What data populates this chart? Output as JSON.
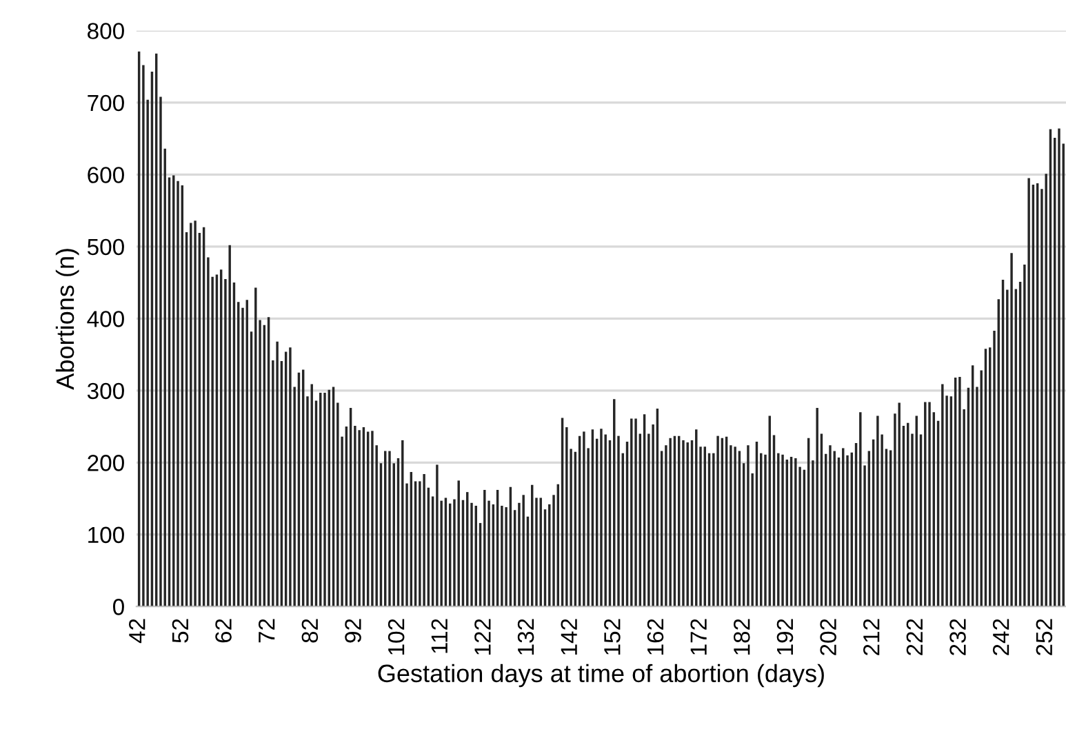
{
  "chart_data": {
    "type": "bar",
    "xlabel": "Gestation days at time of abortion (days)",
    "ylabel": "Abortions (n)",
    "categories": [
      "42",
      null,
      null,
      null,
      null,
      null,
      null,
      null,
      null,
      null,
      "52",
      null,
      null,
      null,
      null,
      null,
      null,
      null,
      null,
      null,
      "62",
      null,
      null,
      null,
      null,
      null,
      null,
      null,
      null,
      null,
      "72",
      null,
      null,
      null,
      null,
      null,
      null,
      null,
      null,
      null,
      "82",
      null,
      null,
      null,
      null,
      null,
      null,
      null,
      null,
      null,
      "92",
      null,
      null,
      null,
      null,
      null,
      null,
      null,
      null,
      null,
      "102",
      null,
      null,
      null,
      null,
      null,
      null,
      null,
      null,
      null,
      "112",
      null,
      null,
      null,
      null,
      null,
      null,
      null,
      null,
      null,
      "122",
      null,
      null,
      null,
      null,
      null,
      null,
      null,
      null,
      null,
      "132",
      null,
      null,
      null,
      null,
      null,
      null,
      null,
      null,
      null,
      "142",
      null,
      null,
      null,
      null,
      null,
      null,
      null,
      null,
      null,
      "152",
      null,
      null,
      null,
      null,
      null,
      null,
      null,
      null,
      null,
      "162",
      null,
      null,
      null,
      null,
      null,
      null,
      null,
      null,
      null,
      "172",
      null,
      null,
      null,
      null,
      null,
      null,
      null,
      null,
      null,
      "182",
      null,
      null,
      null,
      null,
      null,
      null,
      null,
      null,
      null,
      "192",
      null,
      null,
      null,
      null,
      null,
      null,
      null,
      null,
      null,
      "202",
      null,
      null,
      null,
      null,
      null,
      null,
      null,
      null,
      null,
      "212",
      null,
      null,
      null,
      null,
      null,
      null,
      null,
      null,
      null,
      "222",
      null,
      null,
      null,
      null,
      null,
      null,
      null,
      null,
      null,
      "232",
      null,
      null,
      null,
      null,
      null,
      null,
      null,
      null,
      null,
      "242",
      null,
      null,
      null,
      null,
      null,
      null,
      null,
      null,
      null,
      "252",
      null,
      null,
      null,
      null
    ],
    "values": [
      771,
      752,
      704,
      743,
      768,
      708,
      636,
      596,
      599,
      591,
      585,
      520,
      533,
      536,
      519,
      527,
      485,
      458,
      461,
      468,
      455,
      502,
      450,
      423,
      415,
      426,
      382,
      443,
      398,
      391,
      402,
      342,
      368,
      341,
      354,
      360,
      305,
      325,
      329,
      292,
      309,
      286,
      297,
      297,
      301,
      305,
      283,
      236,
      250,
      276,
      251,
      245,
      249,
      243,
      244,
      224,
      199,
      216,
      216,
      199,
      206,
      231,
      171,
      187,
      174,
      174,
      184,
      165,
      153,
      197,
      147,
      151,
      143,
      149,
      175,
      148,
      159,
      144,
      140,
      116,
      162,
      147,
      142,
      162,
      140,
      138,
      166,
      134,
      144,
      155,
      125,
      169,
      151,
      151,
      135,
      142,
      155,
      170,
      262,
      249,
      219,
      215,
      237,
      243,
      220,
      246,
      233,
      247,
      239,
      231,
      288,
      237,
      213,
      229,
      261,
      261,
      240,
      267,
      240,
      253,
      275,
      216,
      224,
      234,
      237,
      237,
      231,
      228,
      231,
      246,
      222,
      222,
      213,
      213,
      237,
      234,
      236,
      224,
      222,
      216,
      199,
      224,
      185,
      229,
      213,
      211,
      265,
      238,
      213,
      211,
      204,
      208,
      206,
      194,
      190,
      234,
      203,
      276,
      240,
      212,
      224,
      216,
      207,
      220,
      210,
      214,
      227,
      270,
      196,
      216,
      232,
      265,
      239,
      219,
      217,
      268,
      283,
      251,
      255,
      240,
      265,
      239,
      284,
      284,
      270,
      258,
      309,
      293,
      292,
      318,
      319,
      274,
      304,
      335,
      305,
      328,
      358,
      360,
      383,
      427,
      454,
      440,
      491,
      441,
      451,
      475,
      595,
      586,
      588,
      580,
      601,
      663,
      651,
      664,
      643
    ],
    "color": "#262626",
    "ylim": [
      0,
      800
    ],
    "yticks": [
      0,
      100,
      200,
      300,
      400,
      500,
      600,
      700,
      800
    ],
    "grid": "y",
    "legend": false
  }
}
